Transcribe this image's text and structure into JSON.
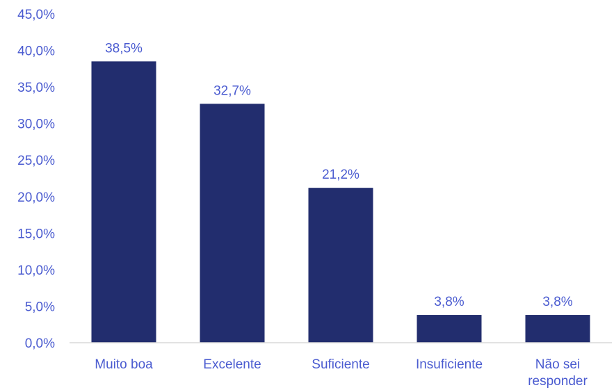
{
  "chart_data": {
    "type": "bar",
    "categories": [
      "Muito boa",
      "Excelente",
      "Suficiente",
      "Insuficiente",
      "Não sei responder"
    ],
    "category_lines": [
      [
        "Muito boa"
      ],
      [
        "Excelente"
      ],
      [
        "Suficiente"
      ],
      [
        "Insuficiente"
      ],
      [
        "Não sei",
        "responder"
      ]
    ],
    "values": [
      38.5,
      32.7,
      21.2,
      3.8,
      3.8
    ],
    "data_labels": [
      "38,5%",
      "32,7%",
      "21,2%",
      "3,8%",
      "3,8%"
    ],
    "ylim": [
      0,
      45
    ],
    "yticks": [
      0,
      5,
      10,
      15,
      20,
      25,
      30,
      35,
      40,
      45
    ],
    "ytick_labels": [
      "0,0%",
      "5,0%",
      "10,0%",
      "15,0%",
      "20,0%",
      "25,0%",
      "30,0%",
      "35,0%",
      "40,0%",
      "45,0%"
    ],
    "grid": false,
    "legend": "none",
    "colors": {
      "bar": "#222d6e",
      "text": "#4a5bd0",
      "axis": "#d9d9d9"
    }
  }
}
